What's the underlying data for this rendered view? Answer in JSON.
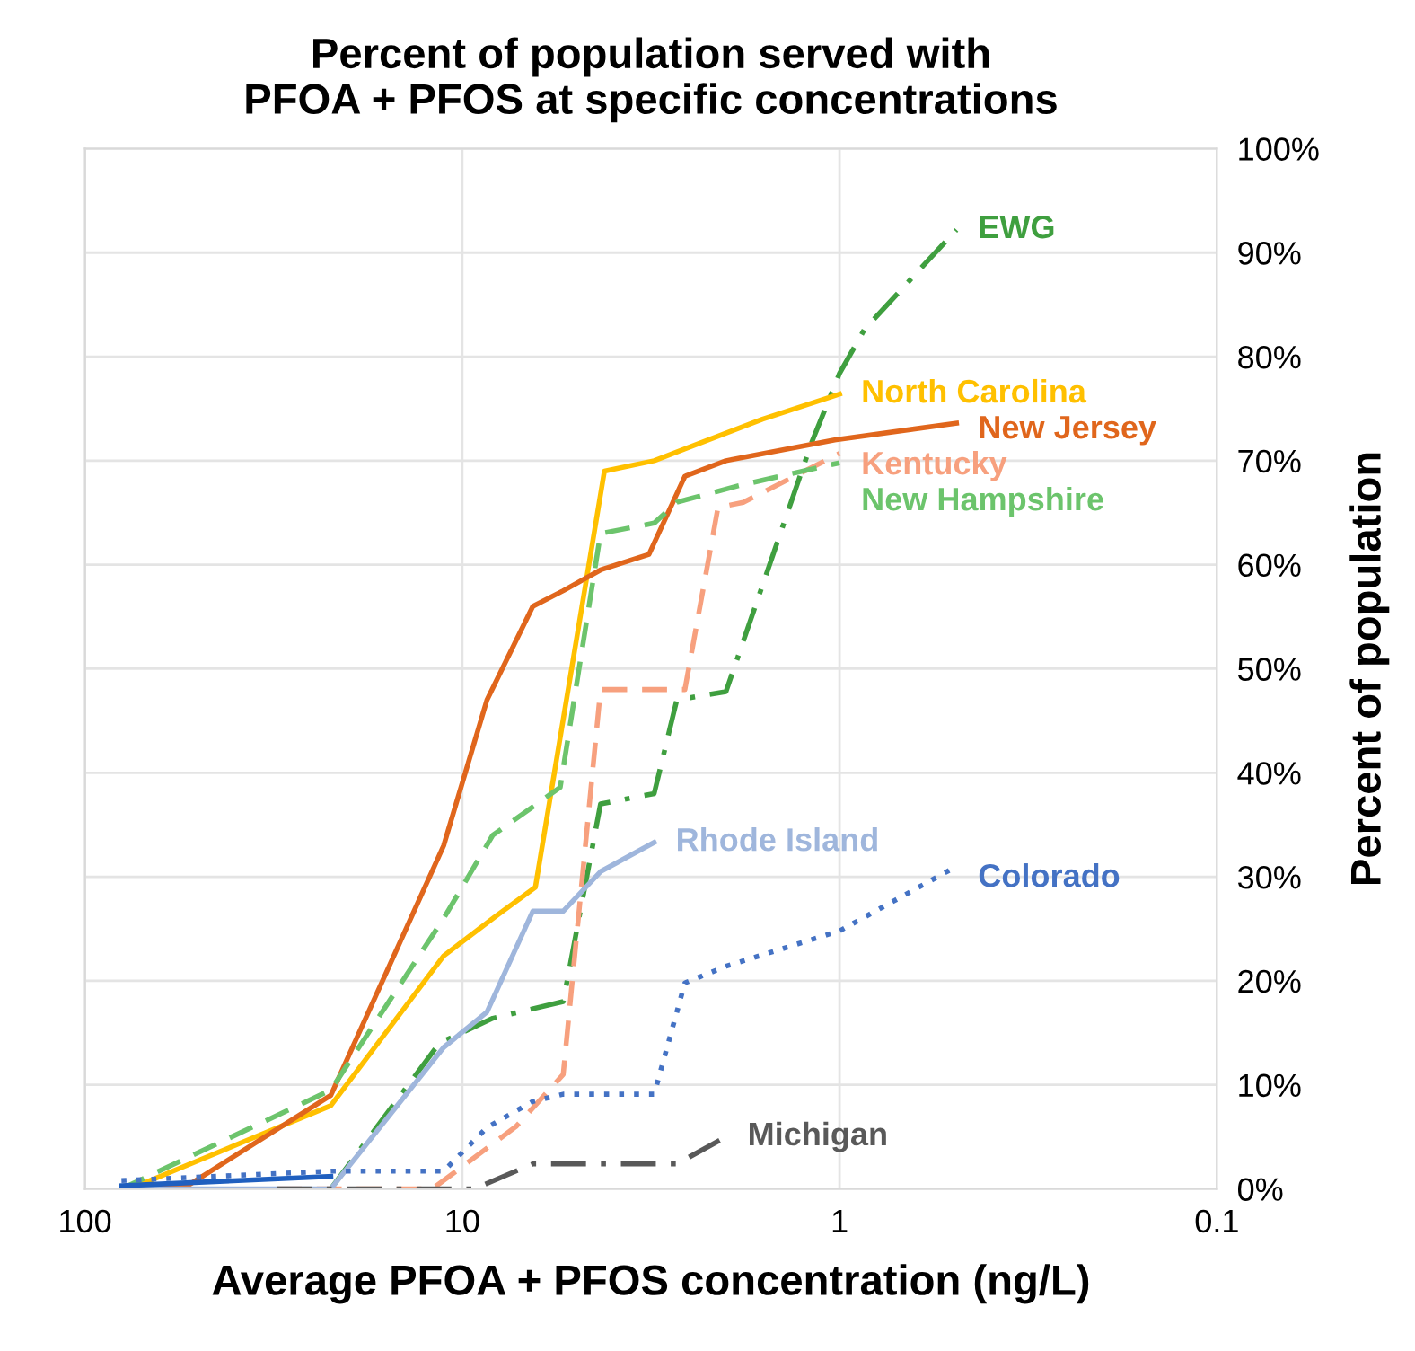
{
  "chart_data": {
    "type": "line",
    "title": "Percent of population served with\nPFOA + PFOS at specific concentrations",
    "xlabel": "Average PFOA + PFOS concentration (ng/L)",
    "ylabel": "Percent of population",
    "log": "x",
    "xlim": [
      100,
      0.1
    ],
    "xticks": [
      100,
      10,
      1,
      0.1
    ],
    "ylim": [
      0,
      100
    ],
    "yticks": [
      {
        "value": 0,
        "label": "0%"
      },
      {
        "value": 10,
        "label": "10%"
      },
      {
        "value": 20,
        "label": "20%"
      },
      {
        "value": 30,
        "label": "30%"
      },
      {
        "value": 40,
        "label": "40%"
      },
      {
        "value": 50,
        "label": "50%"
      },
      {
        "value": 60,
        "label": "60%"
      },
      {
        "value": 70,
        "label": "70%"
      },
      {
        "value": 80,
        "label": "80%"
      },
      {
        "value": 90,
        "label": "90%"
      },
      {
        "value": 100,
        "label": "100%"
      }
    ],
    "grid": true,
    "legend": false,
    "series": [
      {
        "name": "EWG",
        "color": "#3f9f3f",
        "line_style": "dashdot",
        "x": [
          22.3,
          11.5,
          8.3,
          5.4,
          4.3,
          3.1,
          2.7,
          2.0,
          1.19,
          1.0,
          0.86,
          0.49
        ],
        "values": [
          0,
          14,
          16.4,
          18,
          37,
          38,
          47,
          47.8,
          71.6,
          78.4,
          82.6,
          92.2
        ]
      },
      {
        "name": "North Carolina",
        "color": "#ffc000",
        "line_style": "solid",
        "x": [
          76,
          22.3,
          11.2,
          8.3,
          6.4,
          4.2,
          3.1,
          1.6,
          1.0
        ],
        "values": [
          0,
          8,
          22.4,
          26,
          29,
          69,
          70,
          74,
          76.4
        ]
      },
      {
        "name": "New Jersey",
        "color": "#e0661c",
        "line_style": "solid",
        "x": [
          78,
          53.5,
          22.3,
          11.2,
          8.6,
          6.5,
          5.4,
          4.3,
          3.2,
          2.57,
          2.0,
          1.03,
          0.49
        ],
        "values": [
          0,
          0.3,
          9,
          33,
          47,
          56,
          57.5,
          59.5,
          61,
          68.5,
          70,
          72,
          73.6
        ]
      },
      {
        "name": "Kentucky",
        "color": "#f7a07e",
        "line_style": "dashed",
        "x": [
          31,
          12,
          7.2,
          5.4,
          4.3,
          2.57,
          2.1,
          1.8,
          1.0
        ],
        "values": [
          0,
          0,
          6,
          11,
          48,
          48,
          65.5,
          66,
          70.7
        ]
      },
      {
        "name": "New Hampshire",
        "color": "#6cc46c",
        "line_style": "dashed",
        "x": [
          80,
          22.3,
          11.2,
          8.3,
          5.5,
          4.3,
          3.1,
          2.7,
          1.85,
          1.0
        ],
        "values": [
          0,
          9.5,
          26,
          34,
          38.6,
          63,
          64,
          66,
          67.6,
          69.8
        ]
      },
      {
        "name": "Rhode Island",
        "color": "#9fb6dc",
        "line_style": "solid",
        "x": [
          80,
          22.3,
          11.2,
          8.6,
          6.5,
          5.4,
          4.3,
          3.1
        ],
        "values": [
          0,
          0,
          13.6,
          17,
          26.7,
          26.7,
          30.5,
          33.3
        ]
      },
      {
        "name": "Colorado",
        "color": "#4472c4",
        "line_style": "dotted",
        "x": [
          80,
          22.3,
          11.2,
          8.6,
          6.5,
          5.4,
          3.1,
          2.57,
          2.0,
          1.0,
          0.49
        ],
        "values": [
          0.8,
          1.7,
          1.7,
          5.9,
          8.4,
          9.1,
          9.1,
          19.8,
          21.4,
          24.8,
          31
        ]
      },
      {
        "color": "#1f5fbf",
        "line_style": "solid",
        "x": [
          80,
          22.3
        ],
        "values": [
          0.3,
          1.2
        ]
      },
      {
        "name": "Michigan",
        "color": "#595959",
        "line_style": "dashdot",
        "x": [
          31,
          9.3,
          6.5,
          2.7,
          2.0
        ],
        "values": [
          0,
          0,
          2.4,
          2.4,
          5
        ]
      }
    ]
  }
}
